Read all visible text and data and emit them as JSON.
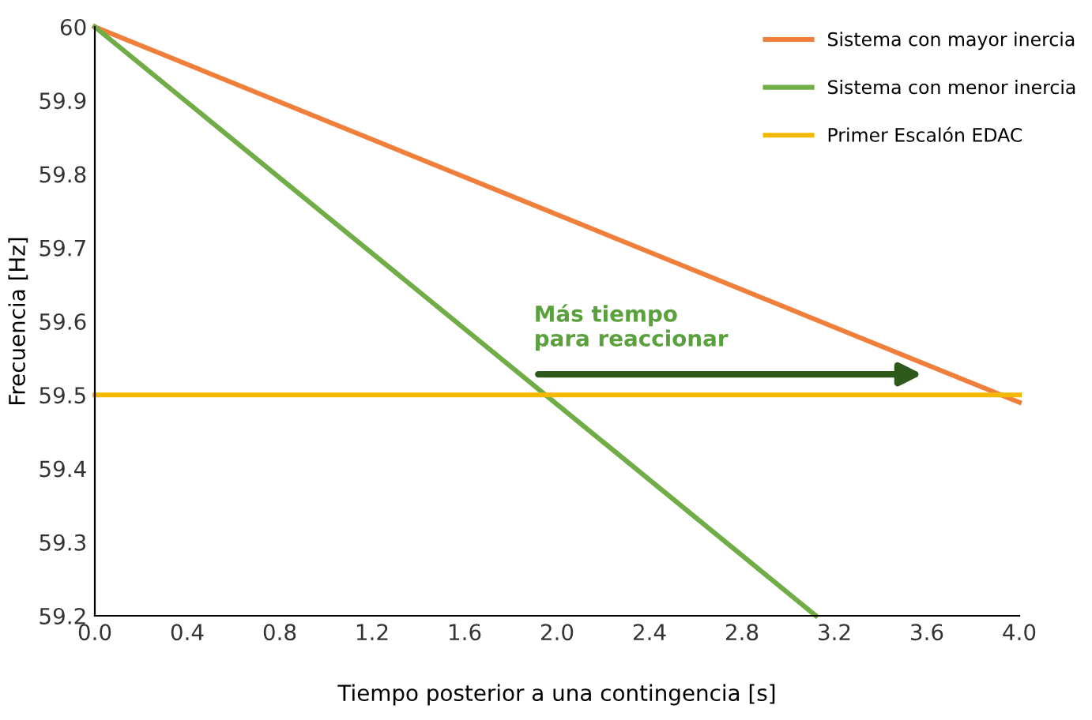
{
  "chart_data": {
    "type": "line",
    "xlabel": "Tiempo posterior a una contingencia [s]",
    "ylabel": "Frecuencia [Hz]",
    "series": [
      {
        "name": "Sistema con mayor inercia",
        "color": "#f07f3c",
        "x": [
          0.0,
          4.0
        ],
        "values": [
          60.0,
          59.49
        ]
      },
      {
        "name": "Sistema con menor inercia",
        "color": "#70ad47",
        "x": [
          0.0,
          3.12
        ],
        "values": [
          60.0,
          59.2
        ]
      },
      {
        "name": "Primer Escalón EDAC",
        "color": "#f5b800",
        "x": [
          0.0,
          4.0
        ],
        "values": [
          59.5,
          59.5
        ]
      }
    ],
    "annotations": [
      "Más tiempo\npara reaccionar"
    ],
    "xlim": [
      0.0,
      4.0
    ],
    "xticks": [
      {
        "value": 0.0,
        "label": "0.0"
      },
      0.4,
      0.8,
      1.2,
      1.6,
      {
        "value": 2.0,
        "label": "2.0"
      },
      2.4,
      2.8,
      3.2,
      3.6,
      {
        "value": 4.0,
        "label": "4.0"
      }
    ],
    "ylim": [
      59.2,
      60.0
    ],
    "yticks": [
      59.2,
      59.3,
      59.4,
      59.5,
      59.6,
      59.7,
      59.8,
      59.9,
      60
    ],
    "grid": false,
    "legend": "top right",
    "marker": "none",
    "line_style": "solid"
  }
}
